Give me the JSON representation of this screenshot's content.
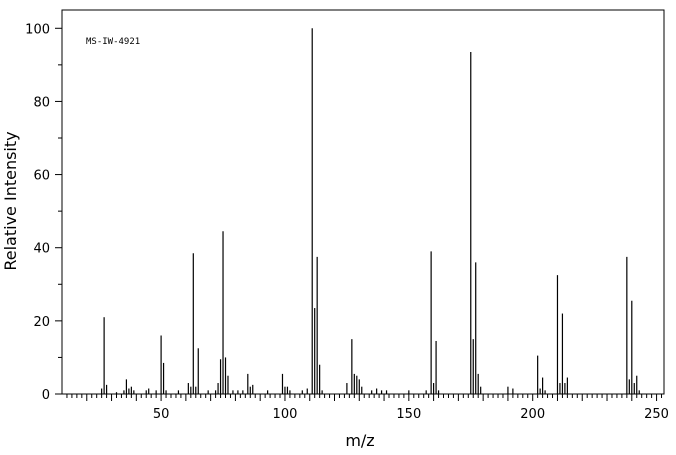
{
  "chart_data": {
    "type": "bar",
    "title": "",
    "annotation": "MS-IW-4921",
    "xlabel": "m/z",
    "ylabel": "Relative Intensity",
    "xlim": [
      10,
      253
    ],
    "ylim": [
      0,
      105
    ],
    "x_ticks": [
      50,
      100,
      150,
      200,
      250
    ],
    "y_ticks": [
      0,
      20,
      40,
      60,
      80,
      100
    ],
    "grid": false,
    "peaks": [
      {
        "mz": 26,
        "intensity": 1.5
      },
      {
        "mz": 27,
        "intensity": 21
      },
      {
        "mz": 28,
        "intensity": 2.5
      },
      {
        "mz": 32,
        "intensity": 0.5
      },
      {
        "mz": 35,
        "intensity": 1
      },
      {
        "mz": 36,
        "intensity": 4
      },
      {
        "mz": 37,
        "intensity": 1.5
      },
      {
        "mz": 38,
        "intensity": 2
      },
      {
        "mz": 39,
        "intensity": 1
      },
      {
        "mz": 44,
        "intensity": 1
      },
      {
        "mz": 45,
        "intensity": 1.5
      },
      {
        "mz": 48,
        "intensity": 1
      },
      {
        "mz": 50,
        "intensity": 16
      },
      {
        "mz": 51,
        "intensity": 8.5
      },
      {
        "mz": 52,
        "intensity": 1
      },
      {
        "mz": 57,
        "intensity": 1
      },
      {
        "mz": 61,
        "intensity": 3
      },
      {
        "mz": 62,
        "intensity": 2
      },
      {
        "mz": 63,
        "intensity": 38.5
      },
      {
        "mz": 64,
        "intensity": 2
      },
      {
        "mz": 65,
        "intensity": 12.5
      },
      {
        "mz": 69,
        "intensity": 1
      },
      {
        "mz": 72,
        "intensity": 1
      },
      {
        "mz": 73,
        "intensity": 3
      },
      {
        "mz": 74,
        "intensity": 9.5
      },
      {
        "mz": 75,
        "intensity": 44.5
      },
      {
        "mz": 76,
        "intensity": 10
      },
      {
        "mz": 77,
        "intensity": 5
      },
      {
        "mz": 79,
        "intensity": 1
      },
      {
        "mz": 81,
        "intensity": 1
      },
      {
        "mz": 83,
        "intensity": 1
      },
      {
        "mz": 85,
        "intensity": 5.5
      },
      {
        "mz": 86,
        "intensity": 2
      },
      {
        "mz": 87,
        "intensity": 2.5
      },
      {
        "mz": 93,
        "intensity": 1
      },
      {
        "mz": 99,
        "intensity": 5.5
      },
      {
        "mz": 100,
        "intensity": 2
      },
      {
        "mz": 101,
        "intensity": 2
      },
      {
        "mz": 102,
        "intensity": 1
      },
      {
        "mz": 107,
        "intensity": 1
      },
      {
        "mz": 109,
        "intensity": 1.5
      },
      {
        "mz": 111,
        "intensity": 100
      },
      {
        "mz": 112,
        "intensity": 23.5
      },
      {
        "mz": 113,
        "intensity": 37.5
      },
      {
        "mz": 114,
        "intensity": 8
      },
      {
        "mz": 115,
        "intensity": 1
      },
      {
        "mz": 125,
        "intensity": 3
      },
      {
        "mz": 127,
        "intensity": 15
      },
      {
        "mz": 128,
        "intensity": 5.5
      },
      {
        "mz": 129,
        "intensity": 5
      },
      {
        "mz": 130,
        "intensity": 4
      },
      {
        "mz": 131,
        "intensity": 2
      },
      {
        "mz": 135,
        "intensity": 1
      },
      {
        "mz": 137,
        "intensity": 1.5
      },
      {
        "mz": 139,
        "intensity": 1
      },
      {
        "mz": 141,
        "intensity": 1
      },
      {
        "mz": 150,
        "intensity": 1
      },
      {
        "mz": 157,
        "intensity": 1
      },
      {
        "mz": 159,
        "intensity": 39
      },
      {
        "mz": 160,
        "intensity": 3
      },
      {
        "mz": 161,
        "intensity": 14.5
      },
      {
        "mz": 162,
        "intensity": 1
      },
      {
        "mz": 175,
        "intensity": 93.5
      },
      {
        "mz": 176,
        "intensity": 15
      },
      {
        "mz": 177,
        "intensity": 36
      },
      {
        "mz": 178,
        "intensity": 5.5
      },
      {
        "mz": 179,
        "intensity": 2
      },
      {
        "mz": 190,
        "intensity": 2
      },
      {
        "mz": 192,
        "intensity": 1.5
      },
      {
        "mz": 202,
        "intensity": 10.5
      },
      {
        "mz": 203,
        "intensity": 1.5
      },
      {
        "mz": 204,
        "intensity": 4.5
      },
      {
        "mz": 205,
        "intensity": 1
      },
      {
        "mz": 210,
        "intensity": 32.5
      },
      {
        "mz": 211,
        "intensity": 3
      },
      {
        "mz": 212,
        "intensity": 22
      },
      {
        "mz": 213,
        "intensity": 3
      },
      {
        "mz": 214,
        "intensity": 4.5
      },
      {
        "mz": 238,
        "intensity": 37.5
      },
      {
        "mz": 239,
        "intensity": 4
      },
      {
        "mz": 240,
        "intensity": 25.5
      },
      {
        "mz": 241,
        "intensity": 3
      },
      {
        "mz": 242,
        "intensity": 5
      },
      {
        "mz": 243,
        "intensity": 1
      }
    ]
  }
}
